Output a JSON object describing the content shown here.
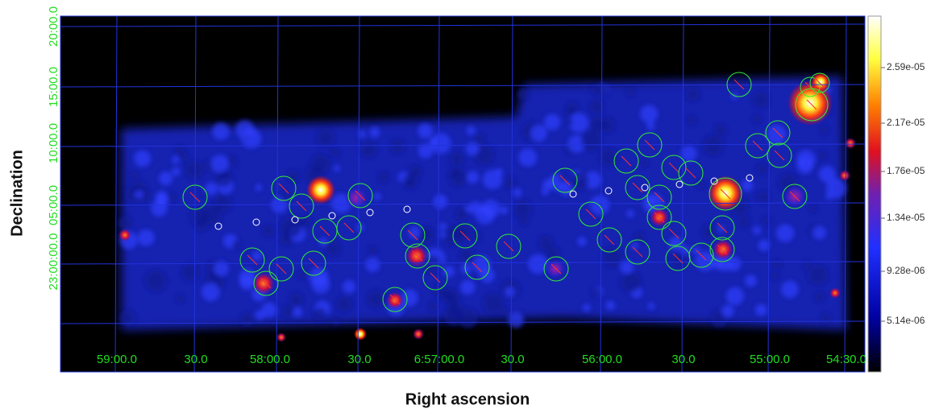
{
  "image": {
    "x_axis": {
      "label": "Right ascension",
      "ticks": [
        "59:00.0",
        "30.0",
        "58:00.0",
        "30.0",
        "6:57:00.0",
        "30.0",
        "56:00.0",
        "30.0",
        "55:00.0",
        "54:30.0"
      ]
    },
    "y_axis": {
      "label": "Declination",
      "ticks": [
        "20:00.0",
        "15:00.0",
        "10:00.0",
        "05:00.0",
        "23:00:00.0"
      ]
    },
    "colorbar": {
      "labels": [
        "2.59e-05",
        "2.17e-05",
        "1.76e-05",
        "1.34e-05",
        "9.28e-06",
        "5.14e-06"
      ]
    }
  }
}
